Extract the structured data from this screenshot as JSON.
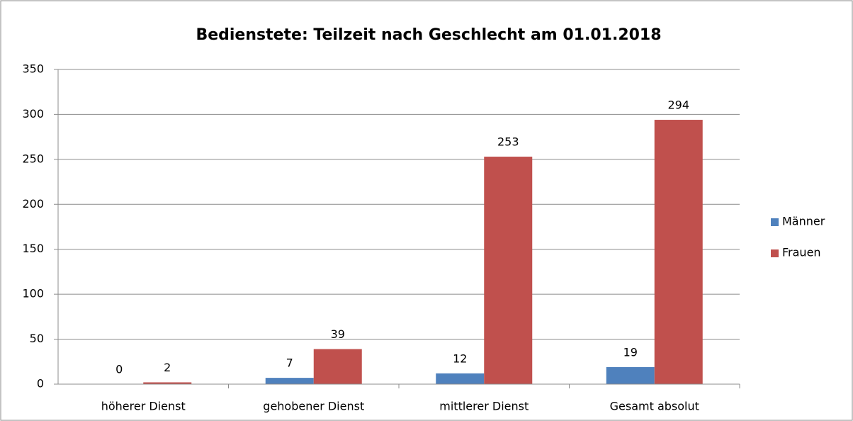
{
  "chart_data": {
    "type": "bar",
    "title": "Bedienstete: Teilzeit nach Geschlecht am 01.01.2018",
    "categories": [
      "höherer Dienst",
      "gehobener Dienst",
      "mittlerer Dienst",
      "Gesamt absolut"
    ],
    "series": [
      {
        "name": "Männer",
        "color": "#4f81bd",
        "values": [
          0,
          7,
          12,
          19
        ]
      },
      {
        "name": "Frauen",
        "color": "#c0504d",
        "values": [
          2,
          39,
          253,
          294
        ]
      }
    ],
    "ylim": [
      0,
      350
    ],
    "yticks": [
      0,
      50,
      100,
      150,
      200,
      250,
      300,
      350
    ],
    "grid": true,
    "legend": "right"
  }
}
